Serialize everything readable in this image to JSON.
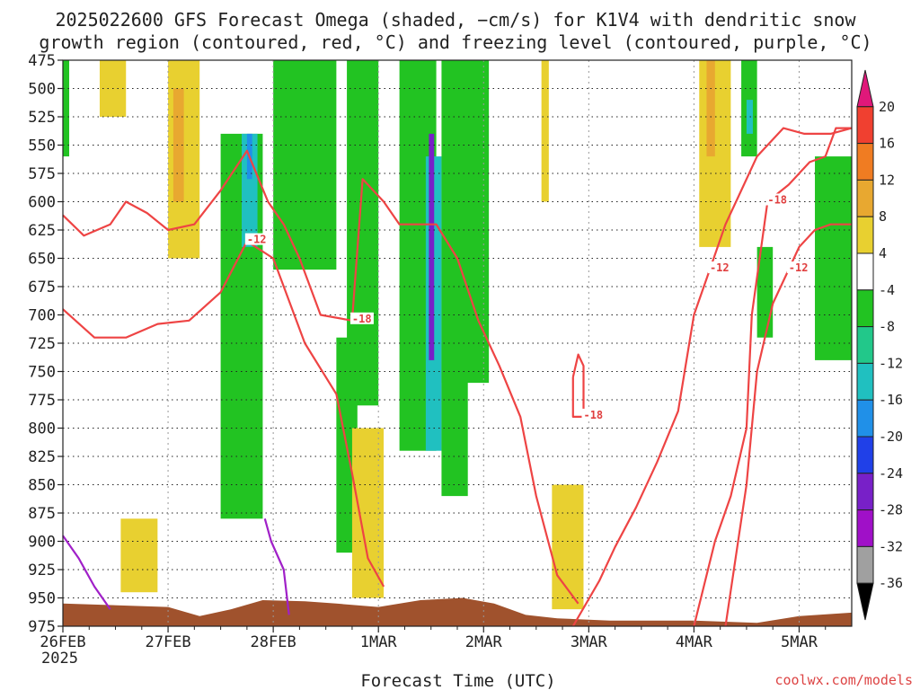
{
  "chart_data": {
    "type": "heatmap",
    "title_line1": "2025022600 GFS Forecast Omega (shaded, −cm/s) for K1V4 with dendritic snow",
    "title_line2": "growth region (contoured, red, °C) and freezing level (contoured, purple, °C)",
    "xlabel": "Forecast Time (UTC)",
    "credit": "coolwx.com/models",
    "x_year_label": "2025",
    "x_ticks": [
      {
        "label": "26FEB",
        "day": 0
      },
      {
        "label": "27FEB",
        "day": 1
      },
      {
        "label": "28FEB",
        "day": 2
      },
      {
        "label": "1MAR",
        "day": 3
      },
      {
        "label": "2MAR",
        "day": 4
      },
      {
        "label": "3MAR",
        "day": 5
      },
      {
        "label": "4MAR",
        "day": 6
      },
      {
        "label": "5MAR",
        "day": 7
      }
    ],
    "xlim_days": [
      0,
      7.5
    ],
    "ylabel": "",
    "y_ticks": [
      475,
      500,
      525,
      550,
      575,
      600,
      625,
      650,
      675,
      700,
      725,
      750,
      775,
      800,
      825,
      850,
      875,
      900,
      925,
      950,
      975
    ],
    "ylim": [
      975,
      475
    ],
    "grid": true,
    "colorbar": {
      "labels": [
        "20",
        "16",
        "12",
        "8",
        "4",
        "-4",
        "-8",
        "-12",
        "-16",
        "-20",
        "-24",
        "-28",
        "-32",
        "-36"
      ],
      "bands": [
        {
          "color": "#e0187a"
        },
        {
          "color": "#f04030"
        },
        {
          "color": "#f07c22"
        },
        {
          "color": "#e8a830"
        },
        {
          "color": "#e8d030"
        },
        {
          "color": "#ffffff"
        },
        {
          "color": "#22c322"
        },
        {
          "color": "#22c88a"
        },
        {
          "color": "#20c0c0"
        },
        {
          "color": "#2090e8"
        },
        {
          "color": "#2040e8"
        },
        {
          "color": "#7820c8"
        },
        {
          "color": "#a010c8"
        },
        {
          "color": "#a0a0a0"
        },
        {
          "color": "#000000"
        }
      ]
    },
    "shaded_regions": [
      {
        "day0": 0.0,
        "day1": 0.06,
        "p_top": 475,
        "p_bot": 560,
        "color": "#22c322"
      },
      {
        "day0": 0.35,
        "day1": 0.6,
        "p_top": 475,
        "p_bot": 525,
        "color": "#e8d030"
      },
      {
        "day0": 1.0,
        "day1": 1.3,
        "p_top": 475,
        "p_bot": 650,
        "color": "#e8d030"
      },
      {
        "day0": 1.05,
        "day1": 1.15,
        "p_top": 500,
        "p_bot": 600,
        "color": "#e8a830"
      },
      {
        "day0": 1.5,
        "day1": 1.9,
        "p_top": 540,
        "p_bot": 880,
        "color": "#22c322"
      },
      {
        "day0": 1.7,
        "day1": 1.85,
        "p_top": 540,
        "p_bot": 640,
        "color": "#20c0c0"
      },
      {
        "day0": 1.75,
        "day1": 1.8,
        "p_top": 540,
        "p_bot": 580,
        "color": "#2090e8"
      },
      {
        "day0": 2.0,
        "day1": 2.6,
        "p_top": 475,
        "p_bot": 660,
        "color": "#22c322"
      },
      {
        "day0": 2.6,
        "day1": 2.8,
        "p_top": 720,
        "p_bot": 910,
        "color": "#22c322"
      },
      {
        "day0": 2.7,
        "day1": 3.0,
        "p_top": 475,
        "p_bot": 780,
        "color": "#22c322"
      },
      {
        "day0": 3.2,
        "day1": 3.55,
        "p_top": 475,
        "p_bot": 820,
        "color": "#22c322"
      },
      {
        "day0": 3.45,
        "day1": 3.6,
        "p_top": 560,
        "p_bot": 820,
        "color": "#20c0c0"
      },
      {
        "day0": 3.48,
        "day1": 3.53,
        "p_top": 540,
        "p_bot": 740,
        "color": "#7820c8"
      },
      {
        "day0": 3.6,
        "day1": 4.05,
        "p_top": 475,
        "p_bot": 760,
        "color": "#22c322"
      },
      {
        "day0": 3.6,
        "day1": 3.85,
        "p_top": 725,
        "p_bot": 860,
        "color": "#22c322"
      },
      {
        "day0": 0.55,
        "day1": 0.9,
        "p_top": 880,
        "p_bot": 945,
        "color": "#e8d030"
      },
      {
        "day0": 2.75,
        "day1": 3.05,
        "p_top": 800,
        "p_bot": 950,
        "color": "#e8d030"
      },
      {
        "day0": 4.65,
        "day1": 4.95,
        "p_top": 850,
        "p_bot": 960,
        "color": "#e8d030"
      },
      {
        "day0": 4.55,
        "day1": 4.62,
        "p_top": 475,
        "p_bot": 600,
        "color": "#e8d030"
      },
      {
        "day0": 6.05,
        "day1": 6.35,
        "p_top": 475,
        "p_bot": 640,
        "color": "#e8d030"
      },
      {
        "day0": 6.12,
        "day1": 6.2,
        "p_top": 475,
        "p_bot": 560,
        "color": "#e8a830"
      },
      {
        "day0": 6.45,
        "day1": 6.6,
        "p_top": 475,
        "p_bot": 560,
        "color": "#22c322"
      },
      {
        "day0": 6.5,
        "day1": 6.56,
        "p_top": 510,
        "p_bot": 540,
        "color": "#20c0c0"
      },
      {
        "day0": 7.15,
        "day1": 7.5,
        "p_top": 560,
        "p_bot": 740,
        "color": "#22c322"
      },
      {
        "day0": 6.6,
        "day1": 6.75,
        "p_top": 640,
        "p_bot": 720,
        "color": "#22c322"
      }
    ],
    "contours": [
      {
        "level": "-18",
        "color": "#ee4444",
        "points": [
          [
            0,
            612
          ],
          [
            0.2,
            630
          ],
          [
            0.45,
            620
          ],
          [
            0.6,
            600
          ],
          [
            0.8,
            610
          ],
          [
            1.0,
            625
          ],
          [
            1.25,
            620
          ],
          [
            1.5,
            590
          ],
          [
            1.75,
            555
          ],
          [
            1.95,
            600
          ],
          [
            2.1,
            620
          ],
          [
            2.25,
            650
          ],
          [
            2.45,
            700
          ],
          [
            2.75,
            705
          ],
          [
            2.85,
            580
          ],
          [
            3.05,
            600
          ],
          [
            3.2,
            620
          ],
          [
            3.4,
            620
          ],
          [
            3.55,
            620
          ],
          [
            3.75,
            650
          ],
          [
            3.95,
            705
          ],
          [
            4.15,
            745
          ],
          [
            4.35,
            790
          ],
          [
            4.5,
            860
          ],
          [
            4.7,
            930
          ],
          [
            4.9,
            955
          ]
        ]
      },
      {
        "level": "-18",
        "color": "#ee4444",
        "points": [
          [
            6.0,
            975
          ],
          [
            6.2,
            900
          ],
          [
            6.35,
            860
          ],
          [
            6.5,
            800
          ],
          [
            6.55,
            700
          ],
          [
            6.7,
            600
          ],
          [
            6.9,
            585
          ],
          [
            7.1,
            565
          ],
          [
            7.25,
            560
          ],
          [
            7.35,
            535
          ],
          [
            7.5,
            535
          ]
        ]
      },
      {
        "level": "-12",
        "color": "#ee4444",
        "points": [
          [
            0,
            695
          ],
          [
            0.3,
            720
          ],
          [
            0.6,
            720
          ],
          [
            0.9,
            708
          ],
          [
            1.2,
            705
          ],
          [
            1.5,
            680
          ],
          [
            1.75,
            635
          ],
          [
            2.0,
            650
          ],
          [
            2.3,
            725
          ],
          [
            2.6,
            770
          ],
          [
            2.75,
            840
          ],
          [
            2.9,
            915
          ],
          [
            3.05,
            940
          ]
        ]
      },
      {
        "level": "-12",
        "color": "#ee4444",
        "points": [
          [
            4.85,
            975
          ],
          [
            5.1,
            935
          ],
          [
            5.25,
            905
          ],
          [
            5.45,
            870
          ],
          [
            5.65,
            830
          ],
          [
            5.85,
            785
          ],
          [
            6.0,
            700
          ],
          [
            6.15,
            660
          ],
          [
            6.3,
            620
          ],
          [
            6.45,
            590
          ],
          [
            6.6,
            560
          ],
          [
            6.85,
            535
          ],
          [
            7.05,
            540
          ],
          [
            7.3,
            540
          ],
          [
            7.5,
            535
          ]
        ]
      },
      {
        "level": "-12",
        "color": "#ee4444",
        "points": [
          [
            6.3,
            975
          ],
          [
            6.5,
            850
          ],
          [
            6.6,
            750
          ],
          [
            6.75,
            690
          ],
          [
            6.9,
            660
          ],
          [
            7.0,
            640
          ],
          [
            7.15,
            625
          ],
          [
            7.3,
            620
          ],
          [
            7.5,
            620
          ]
        ]
      },
      {
        "level": "-18",
        "color": "#ee4444",
        "points": [
          [
            4.85,
            755
          ],
          [
            4.9,
            735
          ],
          [
            4.95,
            745
          ],
          [
            4.95,
            790
          ],
          [
            4.85,
            790
          ],
          [
            4.85,
            755
          ]
        ]
      },
      {
        "level": "0",
        "color": "#a020c8",
        "points": [
          [
            0,
            895
          ],
          [
            0.15,
            915
          ],
          [
            0.3,
            940
          ],
          [
            0.45,
            960
          ]
        ]
      },
      {
        "level": "0",
        "color": "#a020c8",
        "points": [
          [
            1.92,
            880
          ],
          [
            1.98,
            900
          ],
          [
            2.1,
            925
          ],
          [
            2.15,
            965
          ]
        ]
      }
    ],
    "terrain_color": "#a0522d"
  }
}
